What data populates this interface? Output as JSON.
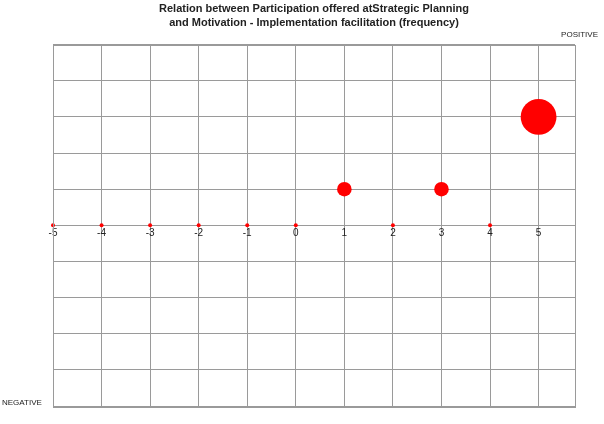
{
  "chart_data": {
    "type": "bubble",
    "title": [
      "Relation between Participation offered atStrategic Planning",
      "and Motivation - Implementation facilitation (frequency)"
    ],
    "annotations": [
      "POSITIVE",
      "NEGATIVE"
    ],
    "x": [
      -5,
      -4,
      -3,
      -2,
      -1,
      0,
      1,
      2,
      3,
      4,
      5
    ],
    "values": [
      0,
      0,
      0,
      0,
      0,
      0,
      1,
      0,
      1,
      0,
      3
    ],
    "sizes": [
      0,
      0,
      0,
      0,
      0,
      0,
      1,
      0,
      1,
      0,
      3
    ],
    "color": "#ff0000",
    "xlim": [
      -5,
      5.75
    ],
    "xticks": [
      -5,
      -4,
      -3,
      -2,
      -1,
      0,
      1,
      2,
      3,
      4,
      5
    ],
    "ylim": [
      -5,
      5
    ],
    "yticks": [
      -5,
      -4,
      -3,
      -2,
      -1,
      0,
      1,
      2,
      3,
      4,
      5
    ],
    "grid": true,
    "tick_labels": "x"
  }
}
